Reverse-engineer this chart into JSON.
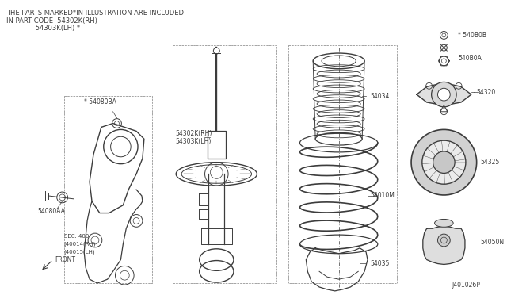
{
  "bg_color": "#ffffff",
  "fig_width": 6.4,
  "fig_height": 3.72,
  "dpi": 100,
  "header_line1": "THE PARTS MARKED*IN ILLUSTRATION ARE INCLUDED",
  "header_line2": "IN PART CODE  54302K(RH)",
  "header_line3": "              54303K(LH) *",
  "part_id": "J401026P",
  "line_color": [
    60,
    60,
    60
  ],
  "text_color": [
    60,
    60,
    60
  ],
  "label_540B0B": "* 540B0B",
  "label_540B0A": "540B0A",
  "label_54320": "54320",
  "label_54034": "54034",
  "label_54325": "54325",
  "label_54010M": "54010M",
  "label_5405ON": "54050N",
  "label_54035": "54035",
  "label_54302K": "54302K(RH)",
  "label_54303K": "54303K(LH)",
  "label_54080BA": "* 54080BA",
  "label_54080AA": "54080AA",
  "label_sec400": "SEC. 400",
  "label_40014": "(40014(RH)",
  "label_40015": "(40015(LH)",
  "label_front": "FRONT"
}
